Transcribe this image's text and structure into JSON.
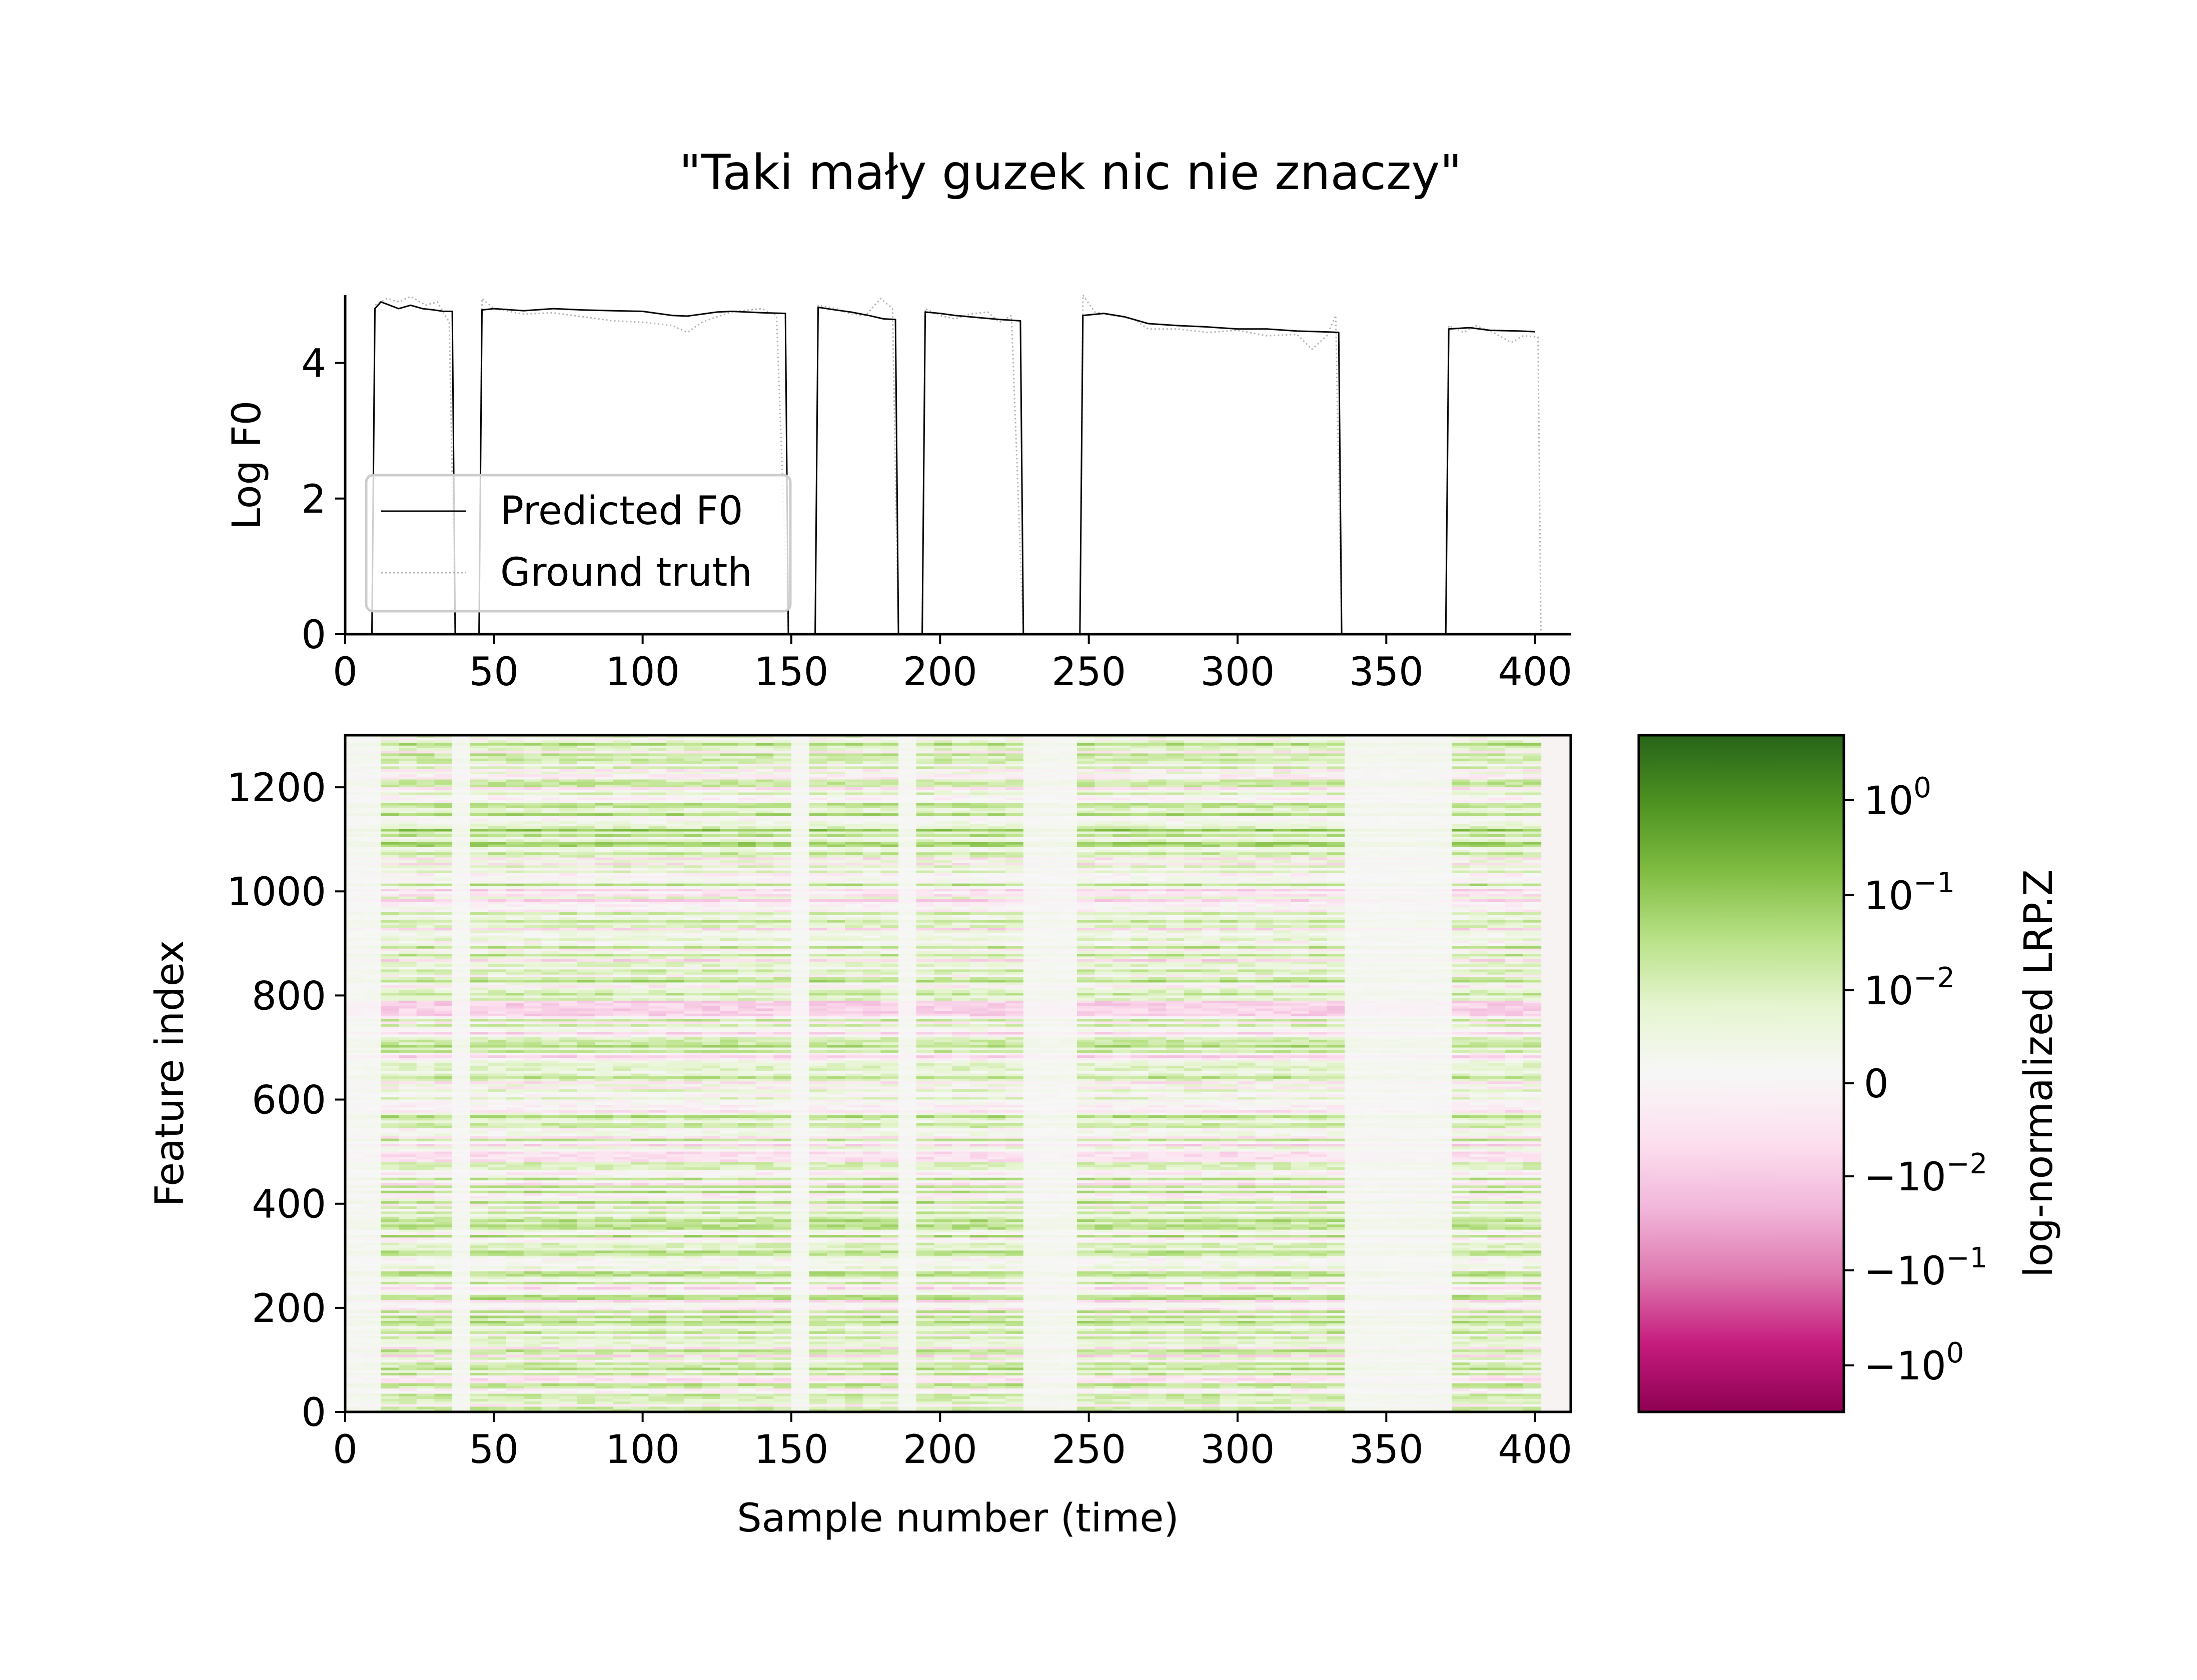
{
  "title": "\"Taki mały guzek nic nie znaczy\"",
  "chart_data": [
    {
      "type": "line",
      "title": "",
      "xlabel": "",
      "ylabel": "Log F0",
      "xlim": [
        0,
        412
      ],
      "ylim": [
        0,
        5
      ],
      "xticks": [
        0,
        50,
        100,
        150,
        200,
        250,
        300,
        350,
        400
      ],
      "yticks": [
        0,
        2,
        4
      ],
      "legend_position": "lower-left",
      "series": [
        {
          "name": "Predicted F0",
          "style": "solid",
          "color": "#000000",
          "points": [
            [
              0,
              0
            ],
            [
              9,
              0
            ],
            [
              10,
              4.8
            ],
            [
              12,
              4.9
            ],
            [
              15,
              4.85
            ],
            [
              18,
              4.8
            ],
            [
              22,
              4.85
            ],
            [
              26,
              4.8
            ],
            [
              30,
              4.78
            ],
            [
              33,
              4.76
            ],
            [
              36,
              4.76
            ],
            [
              37,
              0
            ],
            [
              45,
              0
            ],
            [
              46,
              4.78
            ],
            [
              50,
              4.8
            ],
            [
              60,
              4.77
            ],
            [
              70,
              4.8
            ],
            [
              80,
              4.78
            ],
            [
              90,
              4.77
            ],
            [
              100,
              4.76
            ],
            [
              105,
              4.73
            ],
            [
              110,
              4.7
            ],
            [
              115,
              4.69
            ],
            [
              120,
              4.72
            ],
            [
              125,
              4.75
            ],
            [
              130,
              4.76
            ],
            [
              140,
              4.74
            ],
            [
              148,
              4.73
            ],
            [
              149,
              0
            ],
            [
              158,
              0
            ],
            [
              159,
              4.82
            ],
            [
              165,
              4.78
            ],
            [
              170,
              4.75
            ],
            [
              176,
              4.7
            ],
            [
              181,
              4.65
            ],
            [
              185,
              4.64
            ],
            [
              186,
              0
            ],
            [
              194,
              0
            ],
            [
              195,
              4.75
            ],
            [
              200,
              4.73
            ],
            [
              205,
              4.7
            ],
            [
              210,
              4.68
            ],
            [
              215,
              4.66
            ],
            [
              220,
              4.64
            ],
            [
              227,
              4.62
            ],
            [
              228,
              0
            ],
            [
              247,
              0
            ],
            [
              248,
              4.7
            ],
            [
              255,
              4.73
            ],
            [
              262,
              4.68
            ],
            [
              270,
              4.58
            ],
            [
              280,
              4.55
            ],
            [
              290,
              4.53
            ],
            [
              300,
              4.5
            ],
            [
              310,
              4.5
            ],
            [
              320,
              4.47
            ],
            [
              328,
              4.46
            ],
            [
              334,
              4.45
            ],
            [
              335,
              0
            ],
            [
              370,
              0
            ],
            [
              371,
              4.5
            ],
            [
              378,
              4.52
            ],
            [
              385,
              4.48
            ],
            [
              395,
              4.47
            ],
            [
              400,
              4.46
            ]
          ]
        },
        {
          "name": "Ground truth",
          "style": "dotted",
          "color": "#b4b4b4",
          "points": [
            [
              0,
              0
            ],
            [
              9,
              0
            ],
            [
              10,
              4.85
            ],
            [
              14,
              4.95
            ],
            [
              18,
              4.9
            ],
            [
              22,
              4.98
            ],
            [
              27,
              4.85
            ],
            [
              31,
              4.9
            ],
            [
              35,
              4.6
            ],
            [
              37,
              0
            ],
            [
              45,
              0
            ],
            [
              46,
              4.95
            ],
            [
              50,
              4.8
            ],
            [
              60,
              4.72
            ],
            [
              70,
              4.74
            ],
            [
              80,
              4.68
            ],
            [
              90,
              4.62
            ],
            [
              100,
              4.6
            ],
            [
              110,
              4.55
            ],
            [
              115,
              4.45
            ],
            [
              120,
              4.6
            ],
            [
              125,
              4.68
            ],
            [
              130,
              4.75
            ],
            [
              140,
              4.8
            ],
            [
              145,
              4.7
            ],
            [
              149,
              0
            ],
            [
              158,
              0
            ],
            [
              159,
              4.85
            ],
            [
              165,
              4.8
            ],
            [
              170,
              4.72
            ],
            [
              175,
              4.7
            ],
            [
              180,
              4.95
            ],
            [
              184,
              4.8
            ],
            [
              186,
              0
            ],
            [
              194,
              0
            ],
            [
              195,
              4.8
            ],
            [
              200,
              4.7
            ],
            [
              205,
              4.65
            ],
            [
              210,
              4.72
            ],
            [
              216,
              4.75
            ],
            [
              220,
              4.6
            ],
            [
              224,
              4.7
            ],
            [
              228,
              0
            ],
            [
              247,
              0
            ],
            [
              248,
              5.0
            ],
            [
              252,
              4.75
            ],
            [
              258,
              4.7
            ],
            [
              265,
              4.65
            ],
            [
              270,
              4.5
            ],
            [
              280,
              4.5
            ],
            [
              290,
              4.45
            ],
            [
              300,
              4.48
            ],
            [
              310,
              4.4
            ],
            [
              320,
              4.42
            ],
            [
              325,
              4.2
            ],
            [
              330,
              4.4
            ],
            [
              333,
              4.7
            ],
            [
              335,
              0
            ],
            [
              370,
              0
            ],
            [
              371,
              4.55
            ],
            [
              376,
              4.45
            ],
            [
              380,
              4.55
            ],
            [
              386,
              4.45
            ],
            [
              392,
              4.3
            ],
            [
              396,
              4.4
            ],
            [
              401,
              4.38
            ],
            [
              402,
              0
            ]
          ]
        }
      ]
    },
    {
      "type": "heatmap",
      "title": "",
      "xlabel": "Sample number (time)",
      "ylabel": "Feature index",
      "xlim": [
        0,
        412
      ],
      "ylim": [
        0,
        1300
      ],
      "xticks": [
        0,
        50,
        100,
        150,
        200,
        250,
        300,
        350,
        400
      ],
      "yticks": [
        0,
        200,
        400,
        600,
        800,
        1000,
        1200
      ],
      "voiced_segments": [
        [
          10,
          37
        ],
        [
          45,
          149
        ],
        [
          158,
          186
        ],
        [
          194,
          228
        ],
        [
          248,
          335
        ],
        [
          370,
          402
        ]
      ],
      "colorbar": {
        "label": "log-normalized LRP.Z",
        "colormap": "PiYG",
        "colors": [
          "#8e0152",
          "#c51b7d",
          "#de77ae",
          "#f1b6da",
          "#fde0ef",
          "#f7f7f7",
          "#e6f5d0",
          "#b8e186",
          "#7fbc41",
          "#4d9221",
          "#276419"
        ],
        "ticks": [
          {
            "base": "10",
            "exp": "0",
            "sign": ""
          },
          {
            "base": "10",
            "exp": "−1",
            "sign": ""
          },
          {
            "base": "10",
            "exp": "−2",
            "sign": ""
          },
          {
            "base": "0",
            "exp": "",
            "sign": ""
          },
          {
            "base": "10",
            "exp": "−2",
            "sign": "−"
          },
          {
            "base": "10",
            "exp": "−1",
            "sign": "−"
          },
          {
            "base": "10",
            "exp": "0",
            "sign": "−"
          }
        ]
      }
    }
  ]
}
